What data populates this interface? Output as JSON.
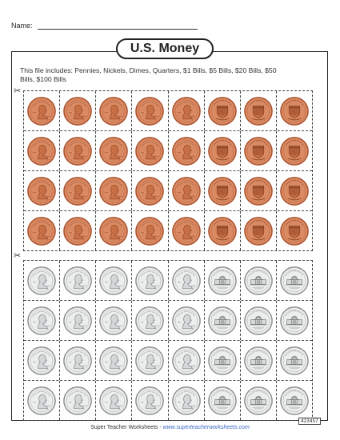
{
  "header": {
    "name_label": "Name:"
  },
  "title": "U.S. Money",
  "description": "This file includes: Pennies, Nickels, Dimes, Quarters, $1 Bills, $5 Bills, $20 Bills, $50 Bills, $100 Bills",
  "sections": [
    {
      "coin": "penny",
      "rows": 4,
      "columns": 8,
      "front_columns": 5,
      "back_columns": 3,
      "colors": {
        "fill": "#d98a63",
        "rim": "#a8502c",
        "inner": "#c87046",
        "detail": "#7a3518"
      },
      "icons": {
        "cut": "scissors-icon",
        "front": "lincoln-portrait-icon",
        "back": "union-shield-icon"
      }
    },
    {
      "coin": "nickel",
      "rows": 4,
      "columns": 8,
      "front_columns": 5,
      "back_columns": 3,
      "colors": {
        "fill": "#eceded",
        "rim": "#8c8e90",
        "inner": "#d5d7d9",
        "detail": "#5f6163"
      },
      "icons": {
        "cut": "scissors-icon",
        "front": "jefferson-portrait-icon",
        "back": "monticello-icon"
      }
    }
  ],
  "footer": {
    "brand": "Super Teacher Worksheets - ",
    "url": "www.superteacherworksheets.com"
  },
  "code": "423457"
}
